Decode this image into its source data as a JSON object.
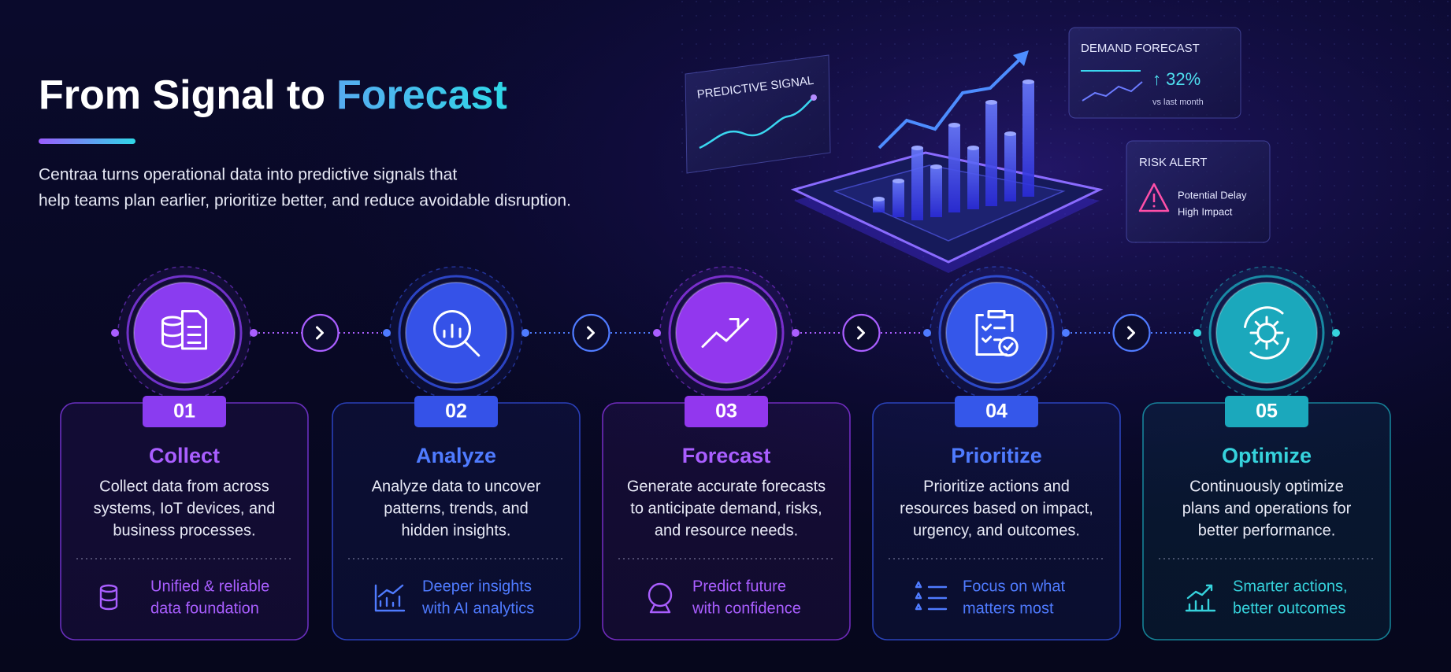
{
  "header": {
    "title_lead": "From Signal to",
    "title_highlight": "Forecast",
    "subtitle_lines": [
      "Centraa turns operational data into predictive signals that",
      "help teams plan earlier, prioritize better, and reduce avoidable disruption."
    ]
  },
  "hero": {
    "predictive_signal": "PREDICTIVE SIGNAL",
    "demand_forecast": {
      "label": "DEMAND FORECAST",
      "change": "↑ 32%",
      "note": "vs last month"
    },
    "risk_alert": {
      "label": "RISK ALERT",
      "lines": [
        "Potential Delay",
        "High Impact"
      ]
    }
  },
  "steps": [
    {
      "number": "01",
      "title": "Collect",
      "description": [
        "Collect data from across",
        "systems, IoT devices, and",
        "business processes."
      ],
      "benefit": [
        "Unified & reliable",
        "data foundation"
      ]
    },
    {
      "number": "02",
      "title": "Analyze",
      "description": [
        "Analyze data to uncover",
        "patterns, trends, and",
        "hidden insights."
      ],
      "benefit": [
        "Deeper insights",
        "with AI analytics"
      ]
    },
    {
      "number": "03",
      "title": "Forecast",
      "description": [
        "Generate accurate forecasts",
        "to anticipate demand, risks,",
        "and resource needs."
      ],
      "benefit": [
        "Predict future",
        "with confidence"
      ]
    },
    {
      "number": "04",
      "title": "Prioritize",
      "description": [
        "Prioritize actions and",
        "resources based on impact,",
        "urgency, and outcomes."
      ],
      "benefit": [
        "Focus on what",
        "matters most"
      ]
    },
    {
      "number": "05",
      "title": "Optimize",
      "description": [
        "Continuously optimize",
        "plans and operations for",
        "better performance."
      ],
      "benefit": [
        "Smarter actions,",
        "better outcomes"
      ]
    }
  ]
}
